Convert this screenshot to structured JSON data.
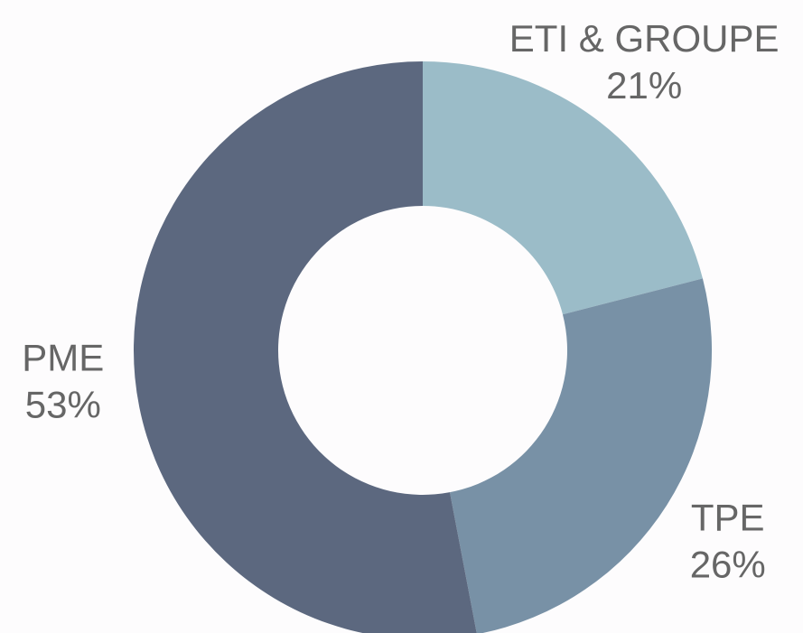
{
  "chart_data": {
    "type": "donut",
    "categories": [
      "ETI & GROUPE",
      "TPE",
      "PME"
    ],
    "values": [
      21,
      26,
      53
    ],
    "value_labels": [
      "21%",
      "26%",
      "53%"
    ],
    "colors": [
      "#9bbcc8",
      "#7891a6",
      "#5c687f"
    ]
  }
}
